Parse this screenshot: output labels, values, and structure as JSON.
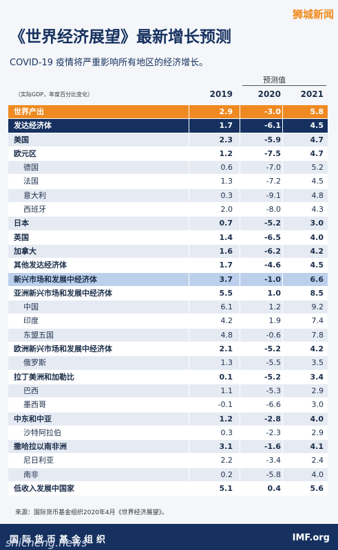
{
  "header": {
    "title": "《世界经济展望》最新增长预测",
    "subtitle": "COVID-19 疫情将严重影响所有地区的经济增长。",
    "watermark": "狮城新闻"
  },
  "table": {
    "unit_note": "（实际GDP，年度百分比变化）",
    "forecast_label": "预测值",
    "columns": [
      "2019",
      "2020",
      "2021"
    ],
    "rows": [
      [
        "世界产出",
        "2.9",
        "-3.0",
        "5.8"
      ],
      [
        "发达经济体",
        "1.7",
        "-6.1",
        "4.5"
      ],
      [
        "美国",
        "2.3",
        "-5.9",
        "4.7"
      ],
      [
        "欧元区",
        "1.2",
        "-7.5",
        "4.7"
      ],
      [
        "德国",
        "0.6",
        "-7.0",
        "5.2"
      ],
      [
        "法国",
        "1.3",
        "-7.2",
        "4.5"
      ],
      [
        "意大利",
        "0.3",
        "-9.1",
        "4.8"
      ],
      [
        "西班牙",
        "2.0",
        "-8.0",
        "4.3"
      ],
      [
        "日本",
        "0.7",
        "-5.2",
        "3.0"
      ],
      [
        "英国",
        "1.4",
        "-6.5",
        "4.0"
      ],
      [
        "加拿大",
        "1.6",
        "-6.2",
        "4.2"
      ],
      [
        "其他发达经济体",
        "1.7",
        "-4.6",
        "4.5"
      ],
      [
        "新兴市场和发展中经济体",
        "3.7",
        "-1.0",
        "6.6"
      ],
      [
        "亚洲新兴市场和发展中经济体",
        "5.5",
        "1.0",
        "8.5"
      ],
      [
        "中国",
        "6.1",
        "1.2",
        "9.2"
      ],
      [
        "印度",
        "4.2",
        "1.9",
        "7.4"
      ],
      [
        "东盟五国",
        "4.8",
        "-0.6",
        "7.8"
      ],
      [
        "欧洲新兴市场和发展中经济体",
        "2.1",
        "-5.2",
        "4.2"
      ],
      [
        "俄罗斯",
        "1.3",
        "-5.5",
        "3.5"
      ],
      [
        "拉丁美洲和加勒比",
        "0.1",
        "-5.2",
        "3.4"
      ],
      [
        "巴西",
        "1.1",
        "-5.3",
        "2.9"
      ],
      [
        "墨西哥",
        "-0.1",
        "-6.6",
        "3.0"
      ],
      [
        "中东和中亚",
        "1.2",
        "-2.8",
        "4.0"
      ],
      [
        "沙特阿拉伯",
        "0.3",
        "-2.3",
        "2.9"
      ],
      [
        "撒哈拉以南非洲",
        "3.1",
        "-1.6",
        "4.1"
      ],
      [
        "尼日利亚",
        "2.2",
        "-3.4",
        "2.4"
      ],
      [
        "南非",
        "0.2",
        "-5.8",
        "4.0"
      ],
      [
        "低收入发展中国家",
        "5.1",
        "0.4",
        "5.6"
      ]
    ]
  },
  "footer": {
    "source": "来源：国际货币基金组织2020年4月《世界经济展望》。",
    "organization": "国际货币基金组织",
    "site": "IMF.org",
    "watermark": "shicheng.news"
  }
}
